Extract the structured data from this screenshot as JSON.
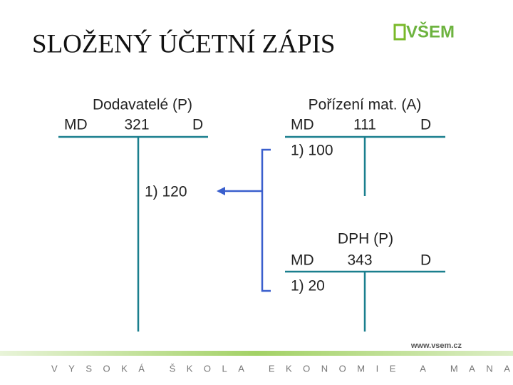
{
  "header": {
    "title": "SLOŽENÝ ÚČETNÍ ZÁPIS",
    "logo": "VŠEM"
  },
  "accounts": [
    {
      "title": "Dodavatelé (P)",
      "debit_label": "MD",
      "number": "321",
      "credit_label": "D",
      "entries": [
        "1) 120"
      ]
    },
    {
      "title": "Pořízení mat. (A)",
      "debit_label": "MD",
      "number": "111",
      "credit_label": "D",
      "entries": [
        "1) 100"
      ]
    },
    {
      "title": "DPH (P)",
      "debit_label": "MD",
      "number": "343",
      "credit_label": "D",
      "entries": [
        "1) 20"
      ]
    }
  ],
  "footer": {
    "url": "www.vsem.cz",
    "school": "VYSOKÁ ŠKOLA EKONOMIE A MANAGEMENTU"
  }
}
